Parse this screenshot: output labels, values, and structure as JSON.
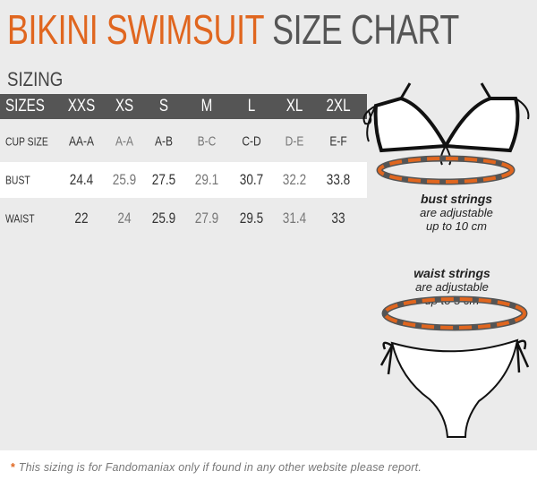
{
  "title": {
    "part1": "BIKINI SWIMSUIT",
    "part2": "SIZE CHART"
  },
  "section": "SIZING",
  "table": {
    "header": [
      "SIZES",
      "XXS",
      "XS",
      "S",
      "M",
      "L",
      "XL",
      "2XL"
    ],
    "rows": [
      {
        "label": "CUP SIZE",
        "values": [
          "AA-A",
          "A-A",
          "A-B",
          "B-C",
          "C-D",
          "D-E",
          "E-F"
        ]
      },
      {
        "label": "BUST",
        "values": [
          "24.4",
          "25.9",
          "27.5",
          "29.1",
          "30.7",
          "32.2",
          "33.8"
        ]
      },
      {
        "label": "WAIST",
        "values": [
          "22",
          "24",
          "25.9",
          "27.9",
          "29.5",
          "31.4",
          "33"
        ]
      }
    ]
  },
  "notes": {
    "bust": {
      "title": "bust strings",
      "line1": "are adjustable",
      "line2": "up to 10 cm"
    },
    "waist": {
      "title": "waist strings",
      "line1": "are adjustable",
      "line2": "up to 5 cm"
    }
  },
  "footer": {
    "star": "*",
    "text": "This sizing is for Fandomaniax only if found in any other website please report."
  },
  "colors": {
    "accent": "#e0661f",
    "header_bg": "#555555",
    "background": "#ebebeb"
  }
}
